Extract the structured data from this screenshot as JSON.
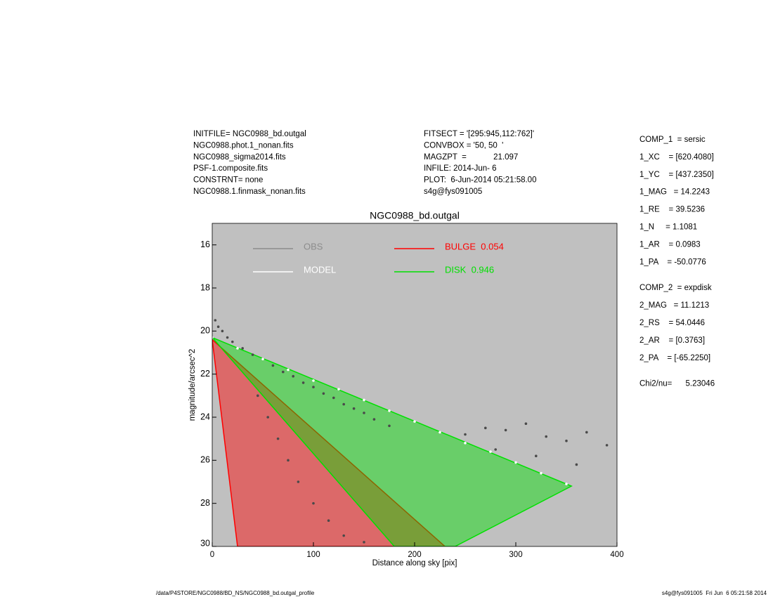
{
  "page": {
    "header_left": [
      "INITFILE= NGC0988_bd.outgal",
      "NGC0988.phot.1_nonan.fits",
      "NGC0988_sigma2014.fits",
      "PSF-1.composite.fits",
      "CONSTRNT= none",
      "NGC0988.1.finmask_nonan.fits"
    ],
    "header_middle": [
      "FITSECT = '[295:945,112:762]'",
      "CONVBOX = '50, 50  '",
      "MAGZPT  =            21.097",
      "INFILE: 2014-Jun- 6",
      "PLOT:  6-Jun-2014 05:21:58.00",
      "s4g@fys091005"
    ],
    "params": [
      [
        "COMP_1  = sersic",
        "1_XC    = [620.4080]",
        "1_YC    = [437.2350]",
        "1_MAG   = 14.2243",
        "1_RE    = 39.5236",
        "1_N     = 1.1081",
        "1_AR    = 0.0983",
        "1_PA    = -50.0776"
      ],
      [
        "COMP_2  = expdisk",
        "2_MAG   = 11.1213",
        "2_RS    = 54.0446",
        "2_AR    = [0.3763]",
        "2_PA    = [-65.2250]"
      ],
      [
        "Chi2/nu=      5.23046"
      ]
    ],
    "footer_left": "/data/P4STORE/NGC0988/BD_NS/NGC0988_bd.outgal_profile",
    "footer_right": "s4g@fys091005  Fri Jun  6 05:21:58 2014"
  },
  "chart_data": {
    "type": "scatter",
    "title": "NGC0988_bd.outgal",
    "x_label": "Distance along sky [pix]",
    "y_label": "magnitude/arcsec^2",
    "xlim": [
      0,
      400
    ],
    "xticks": [
      0,
      100,
      200,
      300,
      400
    ],
    "ylim": [
      30,
      15
    ],
    "yticks": [
      16,
      18,
      20,
      22,
      24,
      26,
      28,
      30
    ],
    "background": "#c0c0c0",
    "series": [
      {
        "name": "OBS",
        "color": "#4a4a4a",
        "legend_color": "#8c8c8c",
        "kind": "points",
        "x": [
          3,
          6,
          10,
          15,
          20,
          30,
          40,
          50,
          60,
          70,
          80,
          90,
          100,
          110,
          120,
          130,
          140,
          150,
          160,
          175,
          45,
          55,
          65,
          75,
          85,
          100,
          115,
          130,
          150,
          250,
          270,
          290,
          310,
          330,
          350,
          370,
          390,
          280,
          320,
          360
        ],
        "values": [
          19.5,
          19.8,
          20.0,
          20.3,
          20.5,
          20.8,
          21.1,
          21.3,
          21.6,
          21.9,
          22.1,
          22.4,
          22.6,
          22.9,
          23.1,
          23.4,
          23.6,
          23.8,
          24.1,
          24.4,
          23.0,
          24.0,
          25.0,
          26.0,
          27.0,
          28.0,
          28.8,
          29.5,
          29.8,
          24.8,
          24.5,
          24.6,
          24.3,
          24.9,
          25.1,
          24.7,
          25.3,
          25.5,
          25.8,
          26.2
        ]
      },
      {
        "name": "MODEL",
        "color": "#ffffff",
        "kind": "points",
        "x": [
          0,
          25,
          50,
          75,
          100,
          125,
          150,
          175,
          200,
          225,
          250,
          275,
          300,
          325,
          350
        ],
        "values": [
          20.3,
          20.8,
          21.3,
          21.8,
          22.3,
          22.7,
          23.2,
          23.7,
          24.2,
          24.7,
          25.2,
          25.6,
          26.1,
          26.6,
          27.1
        ]
      },
      {
        "name": "BULGE  0.054",
        "color": "#ff0000",
        "kind": "fan",
        "x": [
          0,
          25,
          230
        ],
        "values": [
          20.4,
          30,
          30
        ]
      },
      {
        "name": "DISK  0.946",
        "color": "#00e000",
        "kind": "fan",
        "x": [
          0,
          355,
          240,
          180
        ],
        "values": [
          20.3,
          27.2,
          30,
          30
        ]
      }
    ]
  }
}
